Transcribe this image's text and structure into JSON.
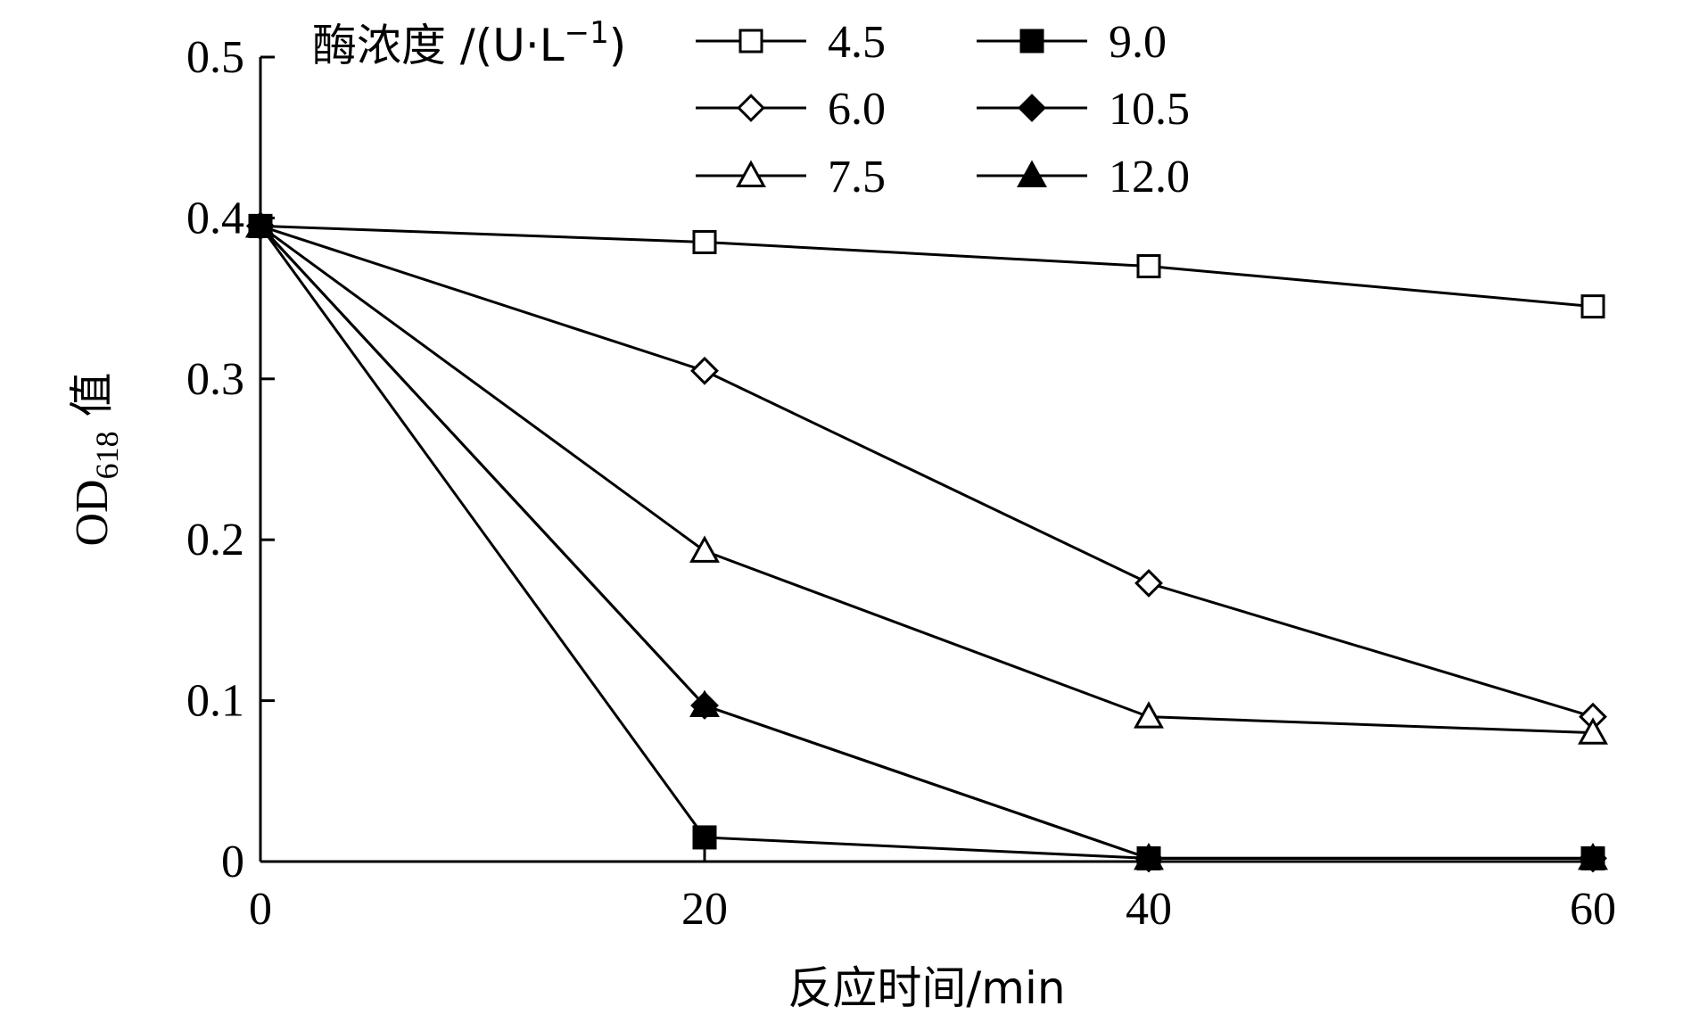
{
  "chart_data": {
    "type": "line",
    "xlabel": "反应时间/min",
    "ylabel": "OD",
    "ylabel_sub": "618",
    "ylabel_suffix": " 值",
    "x": [
      0,
      20,
      40,
      60
    ],
    "xlim": [
      0,
      60
    ],
    "ylim": [
      0,
      0.5
    ],
    "x_ticks": [
      "0",
      "20",
      "40",
      "60"
    ],
    "y_ticks": [
      "0",
      "0.1",
      "0.2",
      "0.3",
      "0.4",
      "0.5"
    ],
    "grid": false,
    "legend_title": "酶浓度 /(U·L",
    "legend_title_sup": "−1",
    "legend_title_close": ")",
    "legend_position": "top-right",
    "series": [
      {
        "name": "4.5",
        "marker": "square",
        "filled": false,
        "values": [
          0.395,
          0.385,
          0.37,
          0.345
        ]
      },
      {
        "name": "6.0",
        "marker": "diamond",
        "filled": false,
        "values": [
          0.395,
          0.305,
          0.173,
          0.09
        ]
      },
      {
        "name": "7.5",
        "marker": "triangle",
        "filled": false,
        "values": [
          0.395,
          0.193,
          0.09,
          0.08
        ]
      },
      {
        "name": "9.0",
        "marker": "square",
        "filled": true,
        "values": [
          0.395,
          0.015,
          0.002,
          0.002
        ]
      },
      {
        "name": "10.5",
        "marker": "diamond",
        "filled": true,
        "values": [
          0.395,
          0.097,
          0.002,
          0.002
        ]
      },
      {
        "name": "12.0",
        "marker": "triangle",
        "filled": true,
        "values": [
          0.395,
          0.097,
          0.002,
          0.002
        ]
      }
    ]
  }
}
